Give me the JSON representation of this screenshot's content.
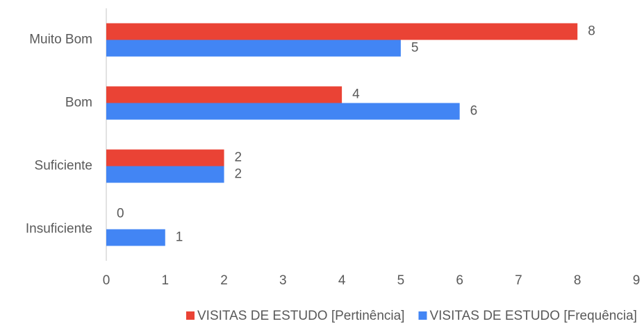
{
  "chart_data": {
    "type": "hbar",
    "categories": [
      "Muito Bom",
      "Bom",
      "Suficiente",
      "Insuficiente"
    ],
    "series": [
      {
        "name": "VISITAS DE ESTUDO [Pertinência]",
        "color": "#ea4335",
        "values": [
          8,
          4,
          2,
          0
        ]
      },
      {
        "name": "VISITAS DE ESTUDO [Frequência]",
        "color": "#4285f4",
        "values": [
          5,
          6,
          2,
          1
        ]
      }
    ],
    "xlim": [
      0,
      9
    ],
    "xticks": [
      0,
      1,
      2,
      3,
      4,
      5,
      6,
      7,
      8,
      9
    ],
    "grid": false,
    "legend": "bottom"
  }
}
